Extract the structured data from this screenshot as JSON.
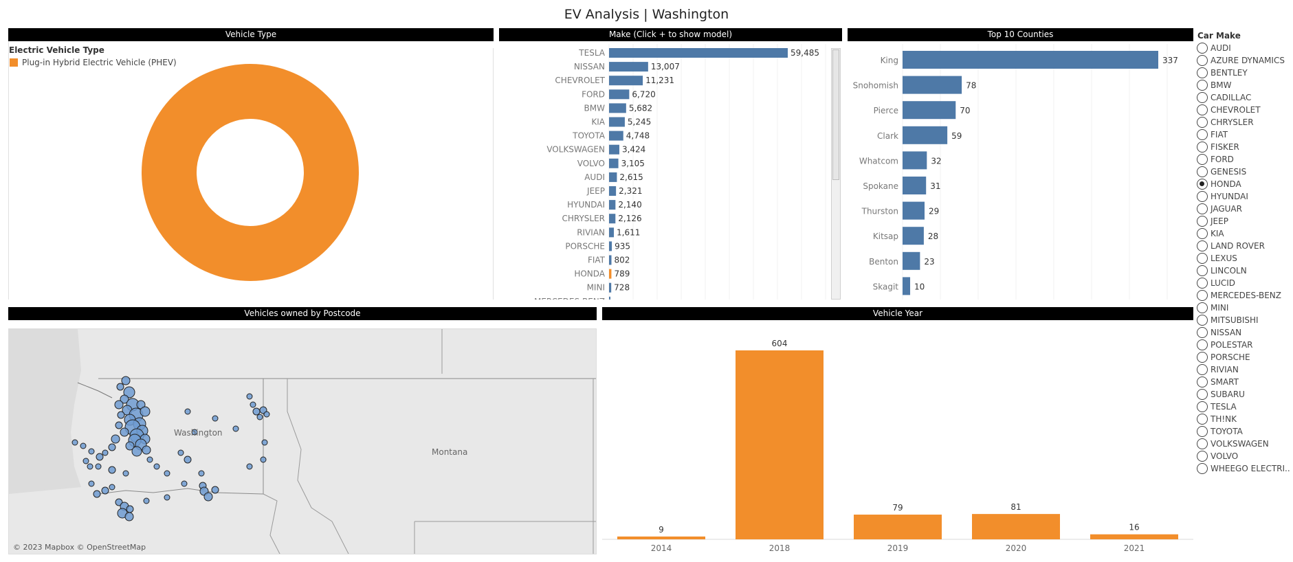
{
  "page_title": "EV Analysis | Washington",
  "vehicle_type": {
    "header": "Vehicle Type",
    "legend_title": "Electric Vehicle Type",
    "legend_item": "Plug-in Hybrid Electric Vehicle (PHEV)",
    "color": "#f28e2b"
  },
  "make_panel": {
    "header": "Make (Click + to show model)",
    "cutoff_label": "MERCEDES-BENZ"
  },
  "counties_panel": {
    "header": "Top 10 Counties"
  },
  "map_panel": {
    "header": "Vehicles owned by Postcode",
    "labels": {
      "washington": "Washington",
      "montana": "Montana"
    },
    "copyright": "© 2023 Mapbox © OpenStreetMap"
  },
  "year_panel": {
    "header": "Vehicle Year"
  },
  "filter": {
    "title": "Car Make",
    "selected": "HONDA",
    "options": [
      "AUDI",
      "AZURE DYNAMICS",
      "BENTLEY",
      "BMW",
      "CADILLAC",
      "CHEVROLET",
      "CHRYSLER",
      "FIAT",
      "FISKER",
      "FORD",
      "GENESIS",
      "HONDA",
      "HYUNDAI",
      "JAGUAR",
      "JEEP",
      "KIA",
      "LAND ROVER",
      "LEXUS",
      "LINCOLN",
      "LUCID",
      "MERCEDES-BENZ",
      "MINI",
      "MITSUBISHI",
      "NISSAN",
      "POLESTAR",
      "PORSCHE",
      "RIVIAN",
      "SMART",
      "SUBARU",
      "TESLA",
      "TH!NK",
      "TOYOTA",
      "VOLKSWAGEN",
      "VOLVO",
      "WHEEGO ELECTRI.."
    ]
  },
  "colors": {
    "blue": "#4e79a7",
    "orange": "#f28e2b"
  },
  "chart_data": [
    {
      "type": "pie",
      "categories": [
        "Plug-in Hybrid Electric Vehicle (PHEV)"
      ],
      "values": [
        100
      ],
      "title": "Vehicle Type"
    },
    {
      "type": "bar",
      "title": "Make (Click + to show model)",
      "categories": [
        "TESLA",
        "NISSAN",
        "CHEVROLET",
        "FORD",
        "BMW",
        "KIA",
        "TOYOTA",
        "VOLKSWAGEN",
        "VOLVO",
        "AUDI",
        "JEEP",
        "HYUNDAI",
        "CHRYSLER",
        "RIVIAN",
        "PORSCHE",
        "FIAT",
        "HONDA",
        "MINI"
      ],
      "values": [
        59485,
        13007,
        11231,
        6720,
        5682,
        5245,
        4748,
        3424,
        3105,
        2615,
        2321,
        2140,
        2126,
        1611,
        935,
        802,
        789,
        728
      ],
      "value_labels": [
        "59,485",
        "13,007",
        "11,231",
        "6,720",
        "5,682",
        "5,245",
        "4,748",
        "3,424",
        "3,105",
        "2,615",
        "2,321",
        "2,140",
        "2,126",
        "1,611",
        "935",
        "802",
        "789",
        "728"
      ],
      "highlight": "HONDA",
      "orientation": "horizontal"
    },
    {
      "type": "bar",
      "title": "Top 10 Counties",
      "categories": [
        "King",
        "Snohomish",
        "Pierce",
        "Clark",
        "Whatcom",
        "Spokane",
        "Thurston",
        "Kitsap",
        "Benton",
        "Skagit"
      ],
      "values": [
        337,
        78,
        70,
        59,
        32,
        31,
        29,
        28,
        23,
        10
      ],
      "orientation": "horizontal"
    },
    {
      "type": "bar",
      "title": "Vehicle Year",
      "categories": [
        "2014",
        "2018",
        "2019",
        "2020",
        "2021"
      ],
      "values": [
        9,
        604,
        79,
        81,
        16
      ]
    }
  ]
}
